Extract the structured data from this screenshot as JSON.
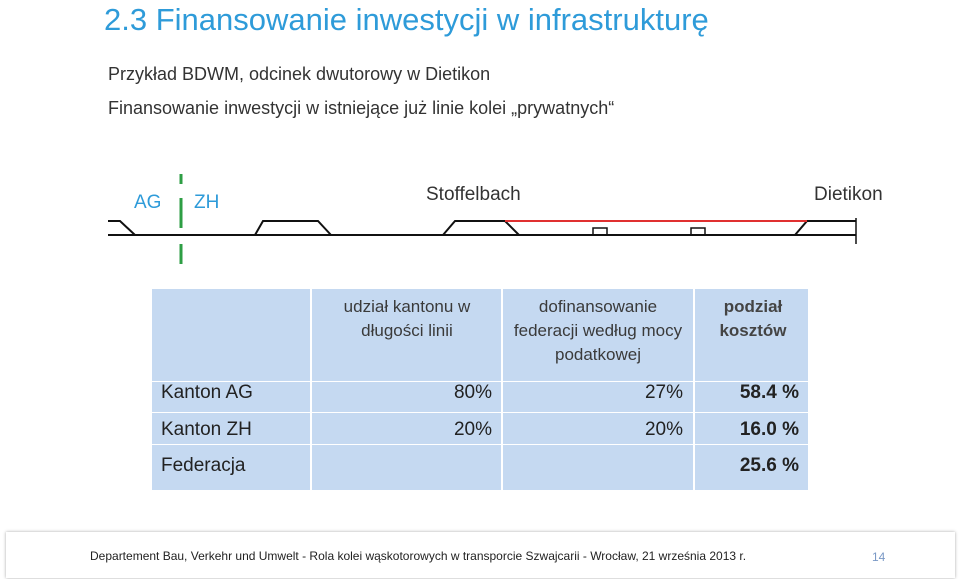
{
  "slide": {
    "title": "2.3  Finansowanie inwestycji w infrastrukturę",
    "subtitle_1": "Przykład BDWM, odcinek dwutorowy w Dietikon",
    "subtitle_2": "Finansowanie inwestycji w istniejące już linie kolei „prywatnych“"
  },
  "diagram": {
    "label_ag": "AG",
    "label_zh": "ZH",
    "label_stoffelbach": "Stoffelbach",
    "label_dietikon": "Dietikon",
    "colors": {
      "track": "#111111",
      "border": "#2e9e44",
      "double_track": "#e03030",
      "label_ag_zh": "#2e9bd9"
    }
  },
  "table": {
    "headers": {
      "share_length": "udział kantonu w długości linii",
      "federal_cofinancing": "dofinansowanie federacji według mocy podatkowej",
      "cost_split": "podział kosztów"
    },
    "rows": [
      {
        "label": "Kanton AG",
        "share": "80%",
        "federal": "27%",
        "split": "58.4 %"
      },
      {
        "label": "Kanton ZH",
        "share": "20%",
        "federal": "20%",
        "split": "16.0 %"
      },
      {
        "label": "Federacja",
        "share": "",
        "federal": "",
        "split": "25.6 %"
      }
    ],
    "colors": {
      "background": "#c5d9f1"
    }
  },
  "footer": {
    "text": "Departement Bau, Verkehr und Umwelt - Rola kolei wąskotorowych w transporcie Szwajcarii - Wrocław, 21 września 2013 r.",
    "page_number": "14"
  }
}
